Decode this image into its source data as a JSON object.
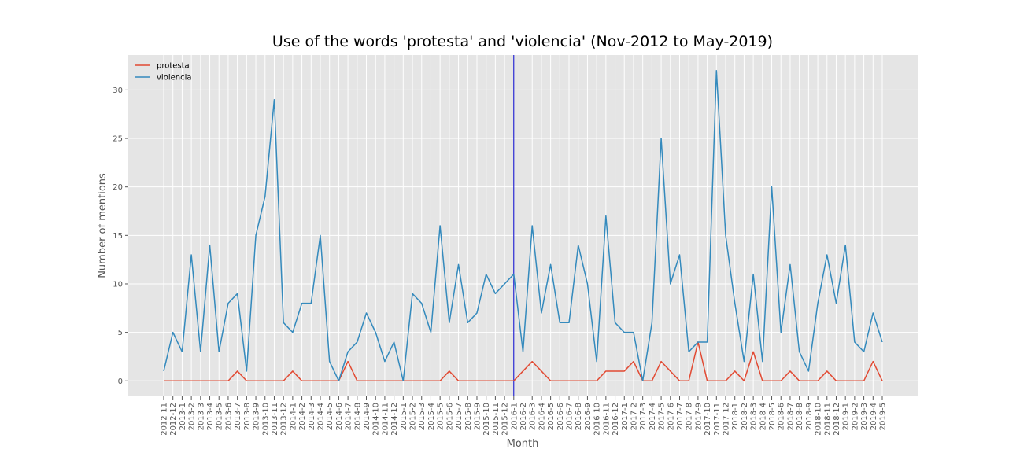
{
  "chart_data": {
    "type": "line",
    "title": "Use of the words 'protesta' and 'violencia' (Nov-2012 to May-2019)",
    "xlabel": "Month",
    "ylabel": "Number of mentions",
    "ylim": [
      -1.6,
      33.6
    ],
    "yticks": [
      0,
      5,
      10,
      15,
      20,
      25,
      30
    ],
    "grid": true,
    "legend_position": "top-left",
    "vertical_marker": "2016-1",
    "x": [
      "2012-11",
      "2012-12",
      "2013-1",
      "2013-2",
      "2013-3",
      "2013-4",
      "2013-5",
      "2013-6",
      "2013-7",
      "2013-8",
      "2013-9",
      "2013-10",
      "2013-11",
      "2013-12",
      "2014-1",
      "2014-2",
      "2014-3",
      "2014-4",
      "2014-5",
      "2014-6",
      "2014-7",
      "2014-8",
      "2014-9",
      "2014-10",
      "2014-11",
      "2014-12",
      "2015-1",
      "2015-2",
      "2015-3",
      "2015-4",
      "2015-5",
      "2015-6",
      "2015-7",
      "2015-8",
      "2015-9",
      "2015-10",
      "2015-11",
      "2015-12",
      "2016-1",
      "2016-2",
      "2016-3",
      "2016-4",
      "2016-5",
      "2016-6",
      "2016-7",
      "2016-8",
      "2016-9",
      "2016-10",
      "2016-11",
      "2016-12",
      "2017-1",
      "2017-2",
      "2017-3",
      "2017-4",
      "2017-5",
      "2017-6",
      "2017-7",
      "2017-8",
      "2017-9",
      "2017-10",
      "2017-11",
      "2017-12",
      "2018-1",
      "2018-2",
      "2018-3",
      "2018-4",
      "2018-5",
      "2018-6",
      "2018-7",
      "2018-8",
      "2018-9",
      "2018-10",
      "2018-11",
      "2018-12",
      "2019-1",
      "2019-2",
      "2019-3",
      "2019-4",
      "2019-5"
    ],
    "series": [
      {
        "name": "protesta",
        "color": "#e24a33",
        "values": [
          0,
          0,
          0,
          0,
          0,
          0,
          0,
          0,
          1,
          0,
          0,
          0,
          0,
          0,
          1,
          0,
          0,
          0,
          0,
          0,
          2,
          0,
          0,
          0,
          0,
          0,
          0,
          0,
          0,
          0,
          0,
          1,
          0,
          0,
          0,
          0,
          0,
          0,
          0,
          1,
          2,
          1,
          0,
          0,
          0,
          0,
          0,
          0,
          1,
          1,
          1,
          2,
          0,
          0,
          2,
          1,
          0,
          0,
          4,
          0,
          0,
          0,
          1,
          0,
          3,
          0,
          0,
          0,
          1,
          0,
          0,
          0,
          1,
          0,
          0,
          0,
          0,
          2,
          0
        ]
      },
      {
        "name": "violencia",
        "color": "#348abd",
        "values": [
          1,
          5,
          3,
          13,
          3,
          14,
          3,
          8,
          9,
          1,
          15,
          19,
          29,
          6,
          5,
          8,
          8,
          15,
          2,
          0,
          3,
          4,
          7,
          5,
          2,
          4,
          0,
          9,
          8,
          5,
          16,
          6,
          12,
          6,
          7,
          11,
          9,
          10,
          11,
          3,
          16,
          7,
          12,
          6,
          6,
          14,
          10,
          2,
          17,
          6,
          5,
          5,
          0,
          6,
          25,
          10,
          13,
          3,
          4,
          4,
          32,
          15,
          8,
          2,
          11,
          2,
          20,
          5,
          12,
          3,
          1,
          8,
          13,
          8,
          14,
          4,
          3,
          7,
          4
        ]
      }
    ]
  }
}
